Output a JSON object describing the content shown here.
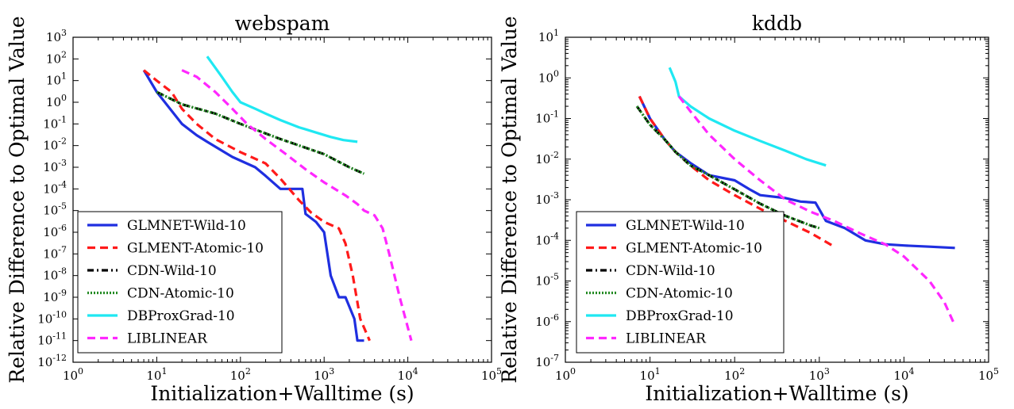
{
  "chart_data": [
    {
      "type": "line",
      "title": "webspam",
      "xlabel": "Initialization+Walltime (s)",
      "ylabel": "Relative Difference to Optimal Value",
      "xscale": "log",
      "yscale": "log",
      "xlim": [
        1,
        100000
      ],
      "ylim": [
        1e-12,
        1000
      ],
      "xtick_exponents": [
        0,
        1,
        2,
        3,
        4,
        5
      ],
      "ytick_exponents": [
        -12,
        -11,
        -10,
        -9,
        -8,
        -7,
        -6,
        -5,
        -4,
        -3,
        -2,
        -1,
        0,
        1,
        2,
        3
      ],
      "grid": false,
      "legend_position": "lower-left",
      "series": [
        {
          "name": "GLMNET-Wild-10",
          "color": "#1f2fe0",
          "dash": "solid",
          "x": [
            7,
            10,
            20,
            30,
            40,
            80,
            150,
            200,
            300,
            550,
            600,
            800,
            1000,
            1200,
            1500,
            1800,
            2300,
            2500,
            3000
          ],
          "y": [
            30,
            3,
            0.1,
            0.03,
            0.015,
            0.003,
            0.001,
            0.0004,
            0.0001,
            0.0001,
            7e-06,
            3e-06,
            1e-06,
            1e-08,
            1e-09,
            1e-09,
            1e-10,
            1e-11,
            1e-11
          ]
        },
        {
          "name": "GLMENT-Atomic-10",
          "color": "#ff1a1a",
          "dash": "dashed",
          "x": [
            7,
            10,
            15,
            20,
            30,
            50,
            100,
            200,
            300,
            500,
            700,
            1000,
            1500,
            1800,
            2200,
            2700,
            3500
          ],
          "y": [
            30,
            10,
            3,
            0.5,
            0.1,
            0.02,
            0.005,
            0.0015,
            0.0003,
            3e-05,
            8e-06,
            3e-06,
            1.5e-06,
            3e-07,
            1e-08,
            1e-10,
            1e-11
          ]
        },
        {
          "name": "CDN-Wild-10",
          "color": "#000000",
          "dash": "dashdot",
          "x": [
            10,
            20,
            50,
            100,
            300,
            1000,
            2000,
            3000
          ],
          "y": [
            3,
            0.8,
            0.3,
            0.1,
            0.02,
            0.004,
            0.001,
            0.0005
          ]
        },
        {
          "name": "CDN-Atomic-10",
          "color": "#238a23",
          "dash": "dotted",
          "x": [
            10,
            20,
            50,
            100,
            300,
            1000,
            2000,
            3000
          ],
          "y": [
            3,
            0.8,
            0.3,
            0.1,
            0.02,
            0.004,
            0.001,
            0.0005
          ]
        },
        {
          "name": "DBProxGrad-10",
          "color": "#1fe8f2",
          "dash": "solid",
          "x": [
            40,
            60,
            80,
            100,
            150,
            200,
            300,
            500,
            800,
            1200,
            1700,
            2500
          ],
          "y": [
            130,
            15,
            3,
            1,
            0.5,
            0.3,
            0.15,
            0.07,
            0.04,
            0.025,
            0.018,
            0.015
          ]
        },
        {
          "name": "LIBLINEAR",
          "color": "#ff27ff",
          "dash": "dashed",
          "x": [
            20,
            30,
            50,
            80,
            120,
            200,
            350,
            600,
            1000,
            1800,
            2500,
            3000,
            4000,
            5000,
            6000,
            8000,
            11000
          ],
          "y": [
            30,
            15,
            3,
            0.5,
            0.1,
            0.02,
            0.004,
            0.0008,
            0.0002,
            5e-05,
            2e-05,
            1e-05,
            6e-06,
            1.5e-06,
            1e-07,
            1e-09,
            1e-11
          ]
        }
      ]
    },
    {
      "type": "line",
      "title": "kddb",
      "xlabel": "Initialization+Walltime (s)",
      "ylabel": "Relative Difference to Optimal Value",
      "xscale": "log",
      "yscale": "log",
      "xlim": [
        1,
        100000
      ],
      "ylim": [
        1e-07,
        10
      ],
      "xtick_exponents": [
        0,
        1,
        2,
        3,
        4,
        5
      ],
      "ytick_exponents": [
        -7,
        -6,
        -5,
        -4,
        -3,
        -2,
        -1,
        0,
        1
      ],
      "grid": false,
      "legend_position": "lower-left",
      "series": [
        {
          "name": "GLMNET-Wild-10",
          "color": "#1f2fe0",
          "dash": "solid",
          "x": [
            7.5,
            10,
            15,
            20,
            30,
            50,
            100,
            150,
            200,
            400,
            600,
            900,
            1200,
            2000,
            3500,
            6000,
            10000,
            20000,
            40000
          ],
          "y": [
            0.35,
            0.1,
            0.03,
            0.015,
            0.008,
            0.004,
            0.003,
            0.0018,
            0.0013,
            0.0011,
            0.0009,
            0.00085,
            0.0003,
            0.0002,
            0.0001,
            8e-05,
            7.5e-05,
            7e-05,
            6.5e-05
          ]
        },
        {
          "name": "GLMENT-Atomic-10",
          "color": "#ff1a1a",
          "dash": "dashed",
          "x": [
            7.5,
            10,
            15,
            20,
            30,
            50,
            100,
            200,
            400,
            800,
            1500
          ],
          "y": [
            0.35,
            0.1,
            0.03,
            0.015,
            0.007,
            0.003,
            0.0013,
            0.0006,
            0.0003,
            0.00015,
            7e-05
          ]
        },
        {
          "name": "CDN-Wild-10",
          "color": "#000000",
          "dash": "dashdot",
          "x": [
            7,
            10,
            15,
            20,
            30,
            50,
            100,
            200,
            400,
            800,
            1000
          ],
          "y": [
            0.2,
            0.07,
            0.03,
            0.015,
            0.007,
            0.004,
            0.0018,
            0.0008,
            0.0004,
            0.00023,
            0.0002
          ]
        },
        {
          "name": "CDN-Atomic-10",
          "color": "#238a23",
          "dash": "dotted",
          "x": [
            7,
            10,
            15,
            20,
            30,
            50,
            100,
            200,
            400,
            800,
            1000
          ],
          "y": [
            0.2,
            0.07,
            0.03,
            0.015,
            0.007,
            0.004,
            0.0018,
            0.0008,
            0.0004,
            0.00023,
            0.0002
          ]
        },
        {
          "name": "DBProxGrad-10",
          "color": "#1fe8f2",
          "dash": "solid",
          "x": [
            17,
            20,
            22,
            30,
            50,
            100,
            200,
            400,
            700,
            1200
          ],
          "y": [
            1.8,
            0.8,
            0.35,
            0.2,
            0.1,
            0.05,
            0.028,
            0.016,
            0.01,
            0.007
          ]
        },
        {
          "name": "LIBLINEAR",
          "color": "#ff27ff",
          "dash": "dashed",
          "x": [
            22,
            30,
            50,
            100,
            200,
            400,
            800,
            1500,
            3000,
            6000,
            10000,
            20000,
            30000,
            40000
          ],
          "y": [
            0.35,
            0.15,
            0.04,
            0.01,
            0.003,
            0.001,
            0.0005,
            0.0003,
            0.00015,
            8e-05,
            4e-05,
            1e-05,
            3e-06,
            8e-07
          ]
        }
      ]
    }
  ]
}
